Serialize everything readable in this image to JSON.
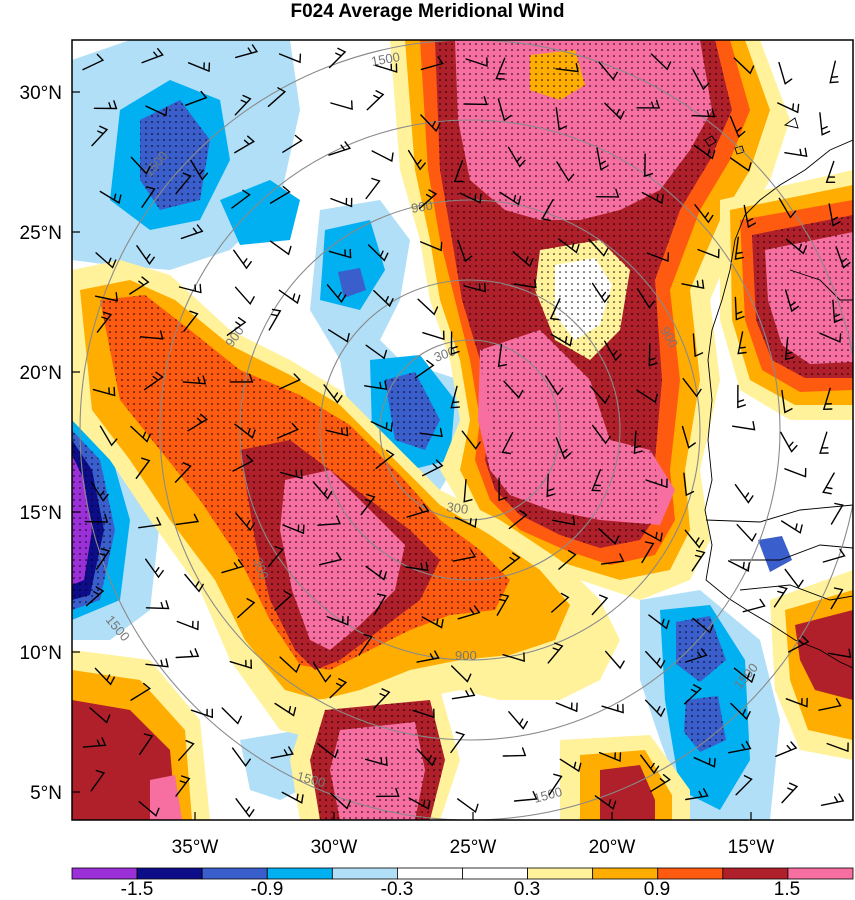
{
  "title": "F024 Average Meridional Wind",
  "lat_labels": [
    "30°N",
    "25°N",
    "20°N",
    "15°N",
    "10°N",
    "5°N"
  ],
  "lon_labels": [
    "35°W",
    "30°W",
    "25°W",
    "20°W",
    "15°W"
  ],
  "colorbar": {
    "labels": [
      "-1.5",
      "-0.9",
      "-0.3",
      "0.3",
      "0.9",
      "1.5"
    ],
    "colors": [
      "#9b30d8",
      "#0d0d8a",
      "#3a5fcd",
      "#00b0f0",
      "#b0dff7",
      "#ffffff",
      "#ffffff",
      "#fff29a",
      "#ffad00",
      "#ff5b10",
      "#b0202a",
      "#f76ea0"
    ]
  },
  "ring_labels": [
    "300",
    "300",
    "300",
    "900",
    "900",
    "900",
    "900",
    "1500",
    "1500",
    "1500",
    "1500",
    "1500",
    "1500"
  ],
  "colors": {
    "pink": "#f76ea0",
    "darkred": "#b0202a",
    "redorange": "#ff5b10",
    "orange": "#ffad00",
    "yellow": "#fff29a",
    "lightblue": "#b0dff7",
    "cyan": "#00b0f0",
    "blue": "#3a5fcd",
    "navy": "#0d0d8a",
    "purple": "#9b30d8",
    "ring": "#8a8a8a"
  }
}
